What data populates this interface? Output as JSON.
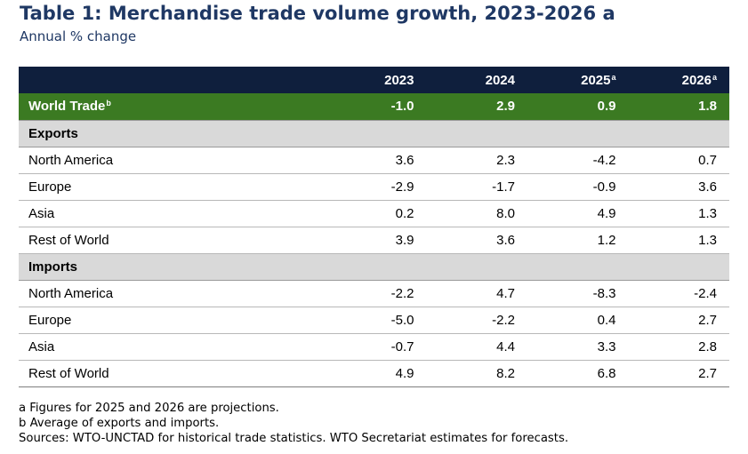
{
  "title": "Table 1: Merchandise trade volume growth, 2023-2026 a",
  "subtitle": "Annual % change",
  "header": {
    "years": [
      {
        "label": "2023",
        "mark": ""
      },
      {
        "label": "2024",
        "mark": ""
      },
      {
        "label": "2025",
        "mark": "a"
      },
      {
        "label": "2026",
        "mark": "a"
      }
    ]
  },
  "world": {
    "label": "World Trade",
    "mark": "b",
    "values": [
      "-1.0",
      "2.9",
      "0.9",
      "1.8"
    ]
  },
  "exports": {
    "label": "Exports",
    "rows": [
      {
        "label": "North America",
        "values": [
          "3.6",
          "2.3",
          "-4.2",
          "0.7"
        ]
      },
      {
        "label": "Europe",
        "values": [
          "-2.9",
          "-1.7",
          "-0.9",
          "3.6"
        ]
      },
      {
        "label": "Asia",
        "values": [
          "0.2",
          "8.0",
          "4.9",
          "1.3"
        ]
      },
      {
        "label": "Rest of World",
        "values": [
          "3.9",
          "3.6",
          "1.2",
          "1.3"
        ]
      }
    ]
  },
  "imports": {
    "label": "Imports",
    "rows": [
      {
        "label": "North America",
        "values": [
          "-2.2",
          "4.7",
          "-8.3",
          "-2.4"
        ]
      },
      {
        "label": "Europe",
        "values": [
          "-5.0",
          "-2.2",
          "0.4",
          "2.7"
        ]
      },
      {
        "label": "Asia",
        "values": [
          "-0.7",
          "4.4",
          "3.3",
          "2.8"
        ]
      },
      {
        "label": "Rest of World",
        "values": [
          "4.9",
          "8.2",
          "6.8",
          "2.7"
        ]
      }
    ]
  },
  "notes": [
    "a  Figures for 2025 and 2026 are projections.",
    "b  Average of exports and imports.",
    "Sources: WTO-UNCTAD for historical trade statistics. WTO Secretariat estimates for forecasts."
  ]
}
